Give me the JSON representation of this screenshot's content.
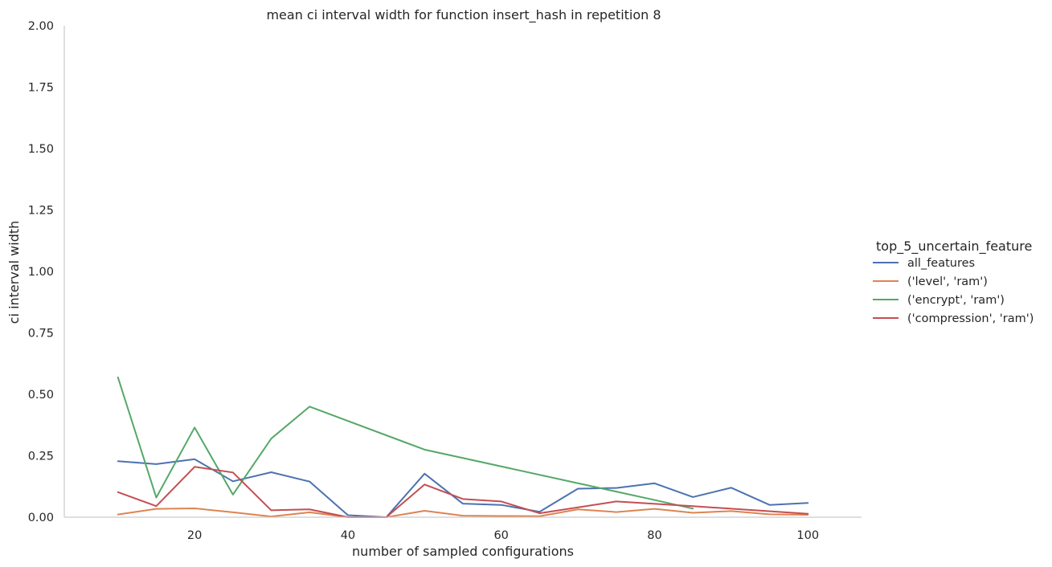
{
  "chart_data": {
    "type": "line",
    "title": "mean ci interval width for function insert_hash in repetition 8",
    "xlabel": "number of sampled configurations",
    "ylabel": "ci interval width",
    "xlim": [
      3,
      107
    ],
    "ylim": [
      0,
      2.0
    ],
    "xticks": [
      20,
      40,
      60,
      80,
      100
    ],
    "yticks": [
      0.0,
      0.25,
      0.5,
      0.75,
      1.0,
      1.25,
      1.5,
      1.75,
      2.0
    ],
    "ytick_labels": [
      "0.00",
      "0.25",
      "0.50",
      "0.75",
      "1.00",
      "1.25",
      "1.50",
      "1.75",
      "2.00"
    ],
    "grid": false,
    "legend": {
      "title": "top_5_uncertain_feature",
      "placement": "right"
    },
    "x": [
      10,
      15,
      20,
      25,
      30,
      35,
      40,
      45,
      50,
      55,
      60,
      65,
      70,
      75,
      80,
      85,
      90,
      95,
      100
    ],
    "series": [
      {
        "name": "all_features",
        "color": "#4c72b0",
        "values": [
          0.228,
          0.216,
          0.236,
          0.146,
          0.183,
          0.145,
          0.008,
          0.0,
          0.177,
          0.055,
          0.05,
          0.022,
          0.116,
          0.119,
          0.138,
          0.082,
          0.12,
          0.05,
          0.058
        ]
      },
      {
        "name": "('level', 'ram')",
        "color": "#dd8452",
        "values": [
          0.011,
          0.034,
          0.036,
          0.02,
          0.003,
          0.02,
          0.0,
          0.0,
          0.026,
          0.006,
          0.005,
          0.004,
          0.032,
          0.021,
          0.034,
          0.018,
          0.025,
          0.012,
          0.01
        ]
      },
      {
        "name": "('encrypt', 'ram')",
        "color": "#55a868",
        "values": [
          0.569,
          0.08,
          0.365,
          0.092,
          0.32,
          0.45,
          null,
          null,
          0.275,
          null,
          null,
          null,
          null,
          null,
          0.07,
          0.035,
          null,
          null,
          null
        ]
      },
      {
        "name": "('compression', 'ram')",
        "color": "#c44e52",
        "values": [
          0.102,
          0.045,
          0.205,
          0.182,
          0.028,
          0.032,
          0.0,
          0.0,
          0.133,
          0.074,
          0.064,
          0.016,
          null,
          0.064,
          null,
          0.045,
          null,
          null,
          0.014
        ]
      }
    ]
  }
}
